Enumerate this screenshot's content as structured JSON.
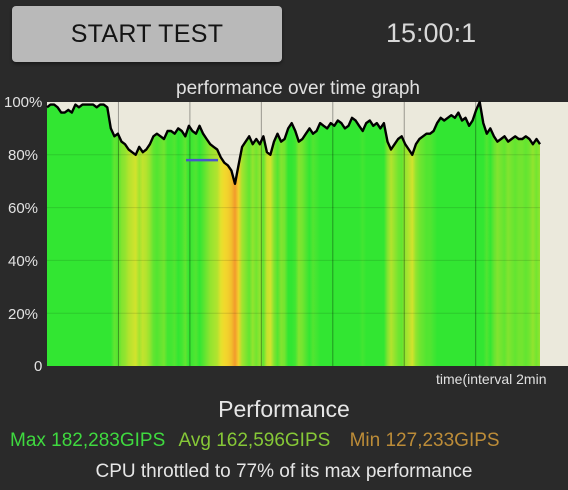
{
  "header": {
    "start_button_label": "START TEST",
    "timer": "15:00:1"
  },
  "chart_data": {
    "type": "area",
    "title": "performance over time graph",
    "xlabel": "time(interval 2min",
    "ylabel": "",
    "yticks": [
      "100%",
      "80%",
      "60%",
      "40%",
      "20%",
      "0"
    ],
    "ylim": [
      0,
      100
    ],
    "grid": true,
    "x_interval_minutes": 2,
    "reference_line": 78,
    "series": [
      {
        "values": [
          98,
          99,
          99,
          98,
          96,
          96,
          97,
          96,
          99,
          98,
          99,
          99,
          99,
          99,
          98,
          99,
          99,
          98,
          90,
          87,
          88,
          85,
          84,
          82,
          81,
          80,
          83,
          81,
          82,
          84,
          87,
          88,
          87,
          86,
          89,
          89,
          88,
          90,
          89,
          87,
          91,
          89,
          88,
          91,
          88,
          86,
          84,
          83,
          82,
          79,
          77,
          76,
          74,
          69,
          76,
          83,
          85,
          87,
          84,
          86,
          84,
          87,
          81,
          80,
          85,
          88,
          85,
          86,
          90,
          92,
          89,
          85,
          86,
          88,
          90,
          88,
          89,
          92,
          91,
          90,
          92,
          91,
          93,
          92,
          90,
          91,
          94,
          93,
          91,
          89,
          92,
          93,
          91,
          92,
          90,
          92,
          85,
          82,
          84,
          86,
          87,
          84,
          82,
          80,
          84,
          86,
          87,
          88,
          88,
          89,
          92,
          94,
          93,
          94,
          95,
          94,
          96,
          93,
          94,
          91,
          93,
          97,
          100,
          92,
          88,
          90,
          87,
          85,
          86,
          87,
          85,
          86,
          87,
          86,
          86,
          87,
          86,
          84,
          86,
          84
        ]
      }
    ],
    "colors": {
      "green": "#32e632",
      "yellow": "#f2e22c",
      "orange": "#f29a2c",
      "background": "#ebe9dc"
    }
  },
  "performance": {
    "title": "Performance",
    "max": "Max 182,283GIPS",
    "avg": "Avg 162,596GIPS",
    "min": "Min 127,233GIPS",
    "throttle_text": "CPU throttled to 77% of its max performance"
  }
}
